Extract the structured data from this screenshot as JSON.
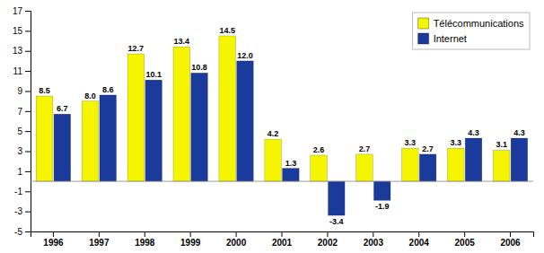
{
  "chart_data": {
    "type": "bar",
    "categories": [
      "1996",
      "1997",
      "1998",
      "1999",
      "2000",
      "2001",
      "2002",
      "2003",
      "2004",
      "2005",
      "2006"
    ],
    "series": [
      {
        "name": "Télécommunications",
        "color": "#F5F500",
        "values": [
          8.5,
          8.0,
          12.7,
          13.4,
          14.5,
          4.2,
          2.6,
          2.7,
          3.3,
          3.3,
          3.1
        ],
        "value_labels": [
          "8.5",
          "8.0",
          "12.7",
          "13.4",
          "14.5",
          "4.2",
          "2.6",
          "2.7",
          "3.3",
          "3.3",
          "3.1"
        ]
      },
      {
        "name": "Internet",
        "color": "#1A3A9C",
        "values": [
          6.7,
          8.6,
          10.1,
          10.8,
          12.0,
          1.3,
          -3.4,
          -1.9,
          2.7,
          4.3,
          4.3
        ],
        "value_labels": [
          "6.7",
          "8.6",
          "10.1",
          "10.8",
          "12.0",
          "1.3",
          "-3.4",
          "-1.9",
          "2.7",
          "4.3",
          "4.3"
        ]
      }
    ],
    "ylim": [
      -5,
      17
    ],
    "yticks": [
      -5,
      -3,
      -1,
      1,
      3,
      5,
      7,
      9,
      11,
      13,
      15,
      17
    ],
    "grid": false,
    "legend": "upper right",
    "data_labels": true
  }
}
